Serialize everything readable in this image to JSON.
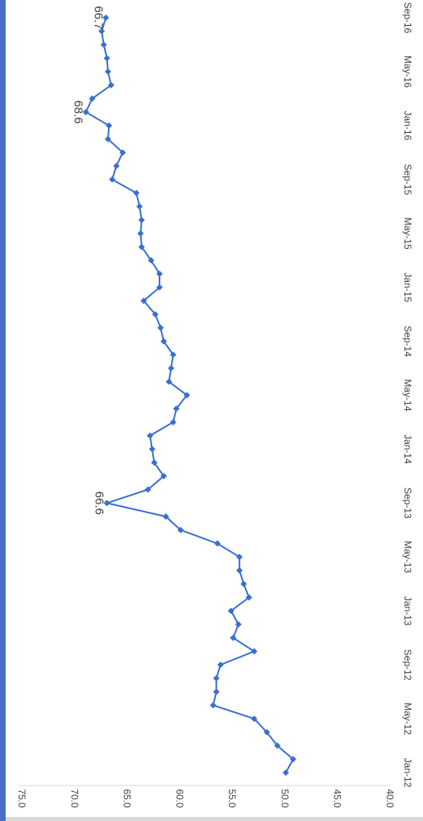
{
  "chart_data": {
    "type": "line",
    "orientation": "rotated-180",
    "x_tick_labels": [
      "Jan-12",
      "May-12",
      "Sep-12",
      "Jan-13",
      "May-13",
      "Sep-13",
      "Jan-14",
      "May-14",
      "Sep-14",
      "Jan-15",
      "May-15",
      "Sep-15",
      "Jan-16",
      "May-16",
      "Sep-16"
    ],
    "y_tick_labels": [
      "40.0",
      "45.0",
      "50.0",
      "55.0",
      "60.0",
      "65.0",
      "70.0",
      "75.0"
    ],
    "ylim": [
      40,
      75
    ],
    "grid": false,
    "legend": "none",
    "series": [
      {
        "color": "#3a6fd0",
        "x": [
          "Jan-12",
          "Feb-12",
          "Mar-12",
          "Apr-12",
          "May-12",
          "Jun-12",
          "Jul-12",
          "Aug-12",
          "Sep-12",
          "Oct-12",
          "Nov-12",
          "Dec-12",
          "Jan-13",
          "Feb-13",
          "Mar-13",
          "Apr-13",
          "May-13",
          "Jun-13",
          "Jul-13",
          "Aug-13",
          "Sep-13",
          "Oct-13",
          "Nov-13",
          "Dec-13",
          "Jan-14",
          "Feb-14",
          "Mar-14",
          "Apr-14",
          "May-14",
          "Jun-14",
          "Jul-14",
          "Aug-14",
          "Sep-14",
          "Oct-14",
          "Nov-14",
          "Dec-14",
          "Jan-15",
          "Feb-15",
          "Mar-15",
          "Apr-15",
          "May-15",
          "Jun-15",
          "Jul-15",
          "Aug-15",
          "Sep-15",
          "Oct-15",
          "Nov-15",
          "Dec-15",
          "Jan-16",
          "Feb-16",
          "Mar-16",
          "Apr-16",
          "May-16",
          "Jun-16",
          "Jul-16",
          "Aug-16",
          "Sep-16"
        ],
        "values": [
          49.6,
          48.9,
          50.4,
          51.4,
          52.6,
          56.5,
          56.2,
          56.2,
          55.8,
          52.6,
          54.6,
          54.1,
          54.8,
          53.1,
          53.6,
          54.0,
          54.0,
          56.1,
          59.6,
          61.0,
          66.6,
          62.7,
          61.2,
          62.1,
          62.3,
          62.5,
          60.3,
          60.0,
          59.0,
          60.7,
          60.5,
          60.3,
          61.2,
          61.5,
          62.0,
          63.1,
          61.6,
          61.6,
          62.4,
          63.3,
          63.4,
          63.3,
          63.5,
          63.8,
          66.1,
          65.7,
          65.1,
          66.5,
          66.4,
          68.6,
          68.0,
          66.2,
          66.5,
          66.6,
          66.9,
          67.1,
          66.7
        ]
      }
    ],
    "annotations": [
      {
        "label": "66.6",
        "point_index": 20
      },
      {
        "label": "68.6",
        "point_index": 49
      },
      {
        "label": "66.7",
        "point_index": 56
      }
    ]
  }
}
